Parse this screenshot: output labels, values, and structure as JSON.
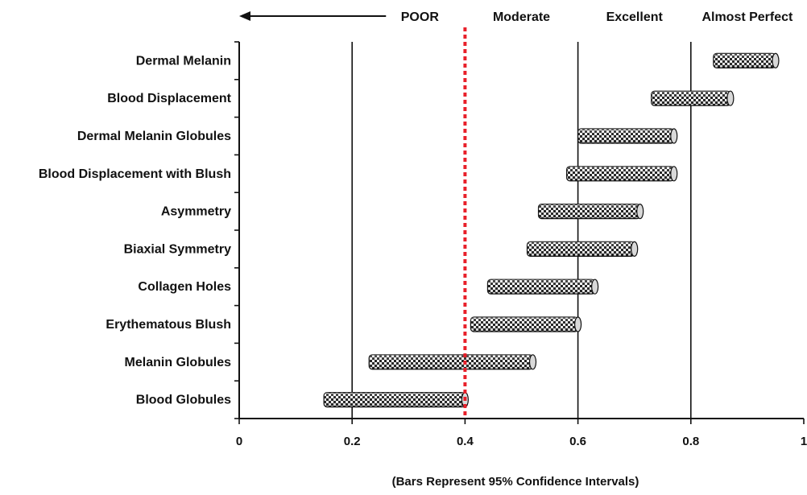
{
  "chart_data": {
    "type": "bar",
    "orientation": "horizontal",
    "bar_style": "floating interval bars with checkered cylinder texture",
    "categories": [
      "Dermal Melanin",
      "Blood Displacement",
      "Dermal Melanin Globules",
      "Blood Displacement with Blush",
      "Asymmetry",
      "Biaxial Symmetry",
      "Collagen Holes",
      "Erythematous Blush",
      "Melanin Globules",
      "Blood Globules"
    ],
    "series": [
      {
        "intervals": [
          [
            0.84,
            0.95
          ],
          [
            0.73,
            0.87
          ],
          [
            0.6,
            0.77
          ],
          [
            0.58,
            0.77
          ],
          [
            0.53,
            0.71
          ],
          [
            0.51,
            0.7
          ],
          [
            0.44,
            0.63
          ],
          [
            0.41,
            0.6
          ],
          [
            0.23,
            0.52
          ],
          [
            0.15,
            0.4
          ]
        ]
      }
    ],
    "xlim": [
      0,
      1
    ],
    "xticks": [
      0,
      0.2,
      0.4,
      0.6,
      0.8,
      1
    ],
    "xtick_labels": [
      "0",
      "0.2",
      "0.4",
      "0.6",
      "0.8",
      "1"
    ],
    "grid_lines_x": [
      0.2,
      0.6,
      0.8
    ],
    "reference_line": {
      "x": 0.4,
      "style": "dotted",
      "color": "#e8202a"
    },
    "top_labels": [
      {
        "text": "POOR",
        "x": 0.32
      },
      {
        "text": "Moderate",
        "x": 0.5
      },
      {
        "text": "Excellent",
        "x": 0.7
      },
      {
        "text": "Almost Perfect",
        "x": 0.9
      }
    ],
    "top_arrow": {
      "from": 0.26,
      "to": 0.0,
      "direction": "left"
    },
    "footnote": "(Bars Represent 95% Confidence Intervals)",
    "grid": true,
    "legend": "none",
    "colors": {
      "axis": "#111111",
      "bar_dark": "#1f1f1f",
      "bar_light": "#f4f4f4",
      "reference": "#e8202a"
    }
  }
}
